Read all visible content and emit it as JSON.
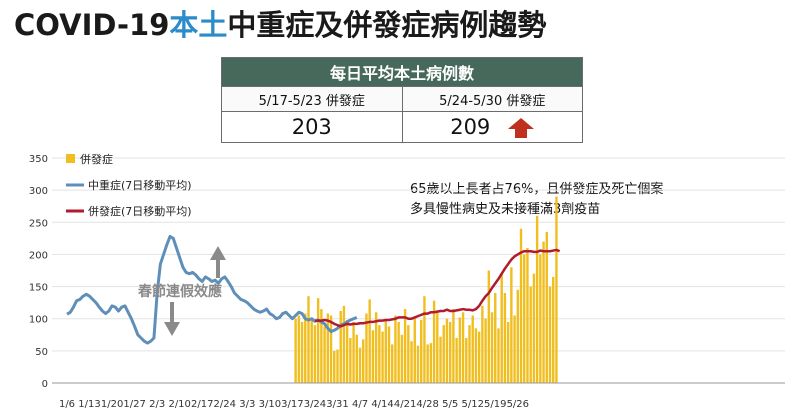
{
  "title": {
    "part1": "COVID-19",
    "part2": "本土",
    "part3": "中重症及併發症病例趨勢"
  },
  "summary": {
    "header": "每日平均本土病例數",
    "col1_label": "5/17-5/23 併發症",
    "col2_label": "5/24-5/30 併發症",
    "col1_value": "203",
    "col2_value": "209",
    "trend": "up",
    "trend_color": "#c0301e"
  },
  "annotation": {
    "line1": "65歲以上長者占76%，且併發症及死亡個案",
    "line2": "多具慢性病史及未接種滿3劑疫苗"
  },
  "chart_callout": "春節連假效應",
  "chart_data": {
    "type": "bar+line",
    "ylim": [
      0,
      350
    ],
    "yticks": [
      0,
      50,
      100,
      150,
      200,
      250,
      300,
      350
    ],
    "xticks": [
      "1/6",
      "1/13",
      "1/20",
      "1/27",
      "2/3",
      "2/10",
      "2/17",
      "2/24",
      "3/3",
      "3/10",
      "3/17",
      "3/24",
      "3/31",
      "4/7",
      "4/14",
      "4/21",
      "4/28",
      "5/5",
      "5/12",
      "5/19",
      "5/26"
    ],
    "x_start": "1/6",
    "legend": [
      "併發症",
      "中重症(7日移動平均)",
      "併發症(7日移動平均)"
    ],
    "colors": {
      "bars": "#f0be1e",
      "severe": "#5f8fb8",
      "complication": "#b01b2e"
    },
    "bar_start": "3/18",
    "bars": [
      100,
      105,
      95,
      108,
      135,
      98,
      90,
      132,
      115,
      88,
      108,
      105,
      50,
      52,
      112,
      120,
      98,
      70,
      95,
      75,
      55,
      68,
      108,
      130,
      82,
      110,
      90,
      80,
      98,
      88,
      60,
      105,
      95,
      75,
      115,
      90,
      65,
      100,
      58,
      98,
      135,
      60,
      62,
      128,
      110,
      72,
      90,
      100,
      95,
      115,
      70,
      102,
      110,
      70,
      90,
      105,
      85,
      80,
      120,
      100,
      175,
      110,
      140,
      85,
      170,
      140,
      95,
      180,
      105,
      145,
      240,
      200,
      210,
      150,
      170,
      260,
      200,
      220,
      235,
      150,
      165,
      290
    ],
    "severe_7dma": [
      107,
      110,
      118,
      128,
      130,
      135,
      138,
      135,
      130,
      125,
      118,
      112,
      108,
      112,
      120,
      118,
      112,
      118,
      120,
      110,
      100,
      88,
      75,
      70,
      65,
      62,
      65,
      70,
      140,
      185,
      200,
      215,
      228,
      225,
      210,
      195,
      180,
      172,
      170,
      172,
      168,
      162,
      158,
      165,
      162,
      158,
      160,
      155,
      162,
      165,
      158,
      150,
      140,
      135,
      130,
      128,
      125,
      120,
      115,
      112,
      110,
      112,
      115,
      108,
      105,
      100,
      102,
      108,
      110,
      105,
      100,
      105,
      110,
      108,
      100,
      98,
      100,
      96,
      98,
      95,
      92,
      85,
      80,
      82,
      85,
      90,
      92,
      95,
      98,
      100,
      102
    ],
    "complication_start": "3/24",
    "complication_7dma": [
      97,
      97,
      97,
      98,
      97,
      95,
      92,
      90,
      88,
      90,
      92,
      91,
      92,
      92,
      93,
      93,
      94,
      95,
      95,
      96,
      97,
      97,
      98,
      98,
      99,
      100,
      102,
      102,
      102,
      100,
      100,
      102,
      104,
      106,
      108,
      108,
      110,
      110,
      111,
      112,
      112,
      114,
      112,
      112,
      113,
      114,
      115,
      114,
      114,
      113,
      115,
      120,
      128,
      135,
      140,
      148,
      155,
      162,
      170,
      178,
      185,
      192,
      197,
      200,
      203,
      205,
      205,
      205,
      204,
      204,
      206,
      205,
      205,
      205,
      206,
      207,
      205
    ]
  }
}
